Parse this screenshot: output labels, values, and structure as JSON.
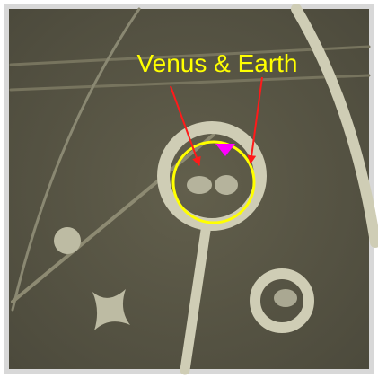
{
  "annotation": {
    "label": "Venus & Earth"
  }
}
